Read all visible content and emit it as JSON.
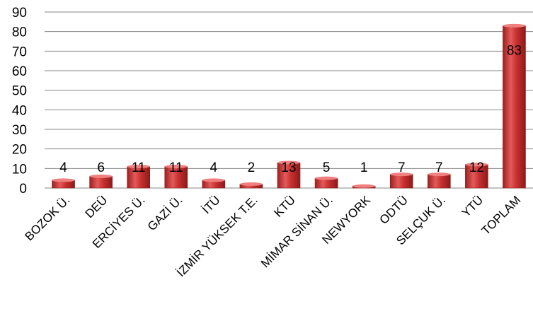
{
  "chart_data": {
    "type": "bar",
    "categories": [
      "BOZOK Ü.",
      "DEÜ",
      "ERCİYES Ü.",
      "GAZİ Ü.",
      "İTÜ",
      "İZMİR YÜKSEK T.E.",
      "KTÜ",
      "MİMAR SİNAN Ü.",
      "NEWYORK",
      "ODTÜ",
      "SELÇUK Ü.",
      "YTÜ",
      "TOPLAM"
    ],
    "values": [
      4,
      6,
      11,
      11,
      4,
      2,
      13,
      5,
      1,
      7,
      7,
      12,
      83
    ],
    "data_labels": [
      "4",
      "6",
      "11",
      "11",
      "4",
      "2",
      "13",
      "5",
      "1",
      "7",
      "7",
      "12",
      "83"
    ],
    "y_ticks": [
      "0",
      "10",
      "20",
      "30",
      "40",
      "50",
      "60",
      "70",
      "80",
      "90"
    ],
    "ylim": [
      0,
      90
    ],
    "grid": true,
    "legend": "none",
    "title": "",
    "xlabel": "",
    "ylabel": "",
    "colors": {
      "bar": "#c0392b",
      "bar_light": "#f08080",
      "bar_dark": "#8b1a1a",
      "grid": "#868686"
    }
  }
}
